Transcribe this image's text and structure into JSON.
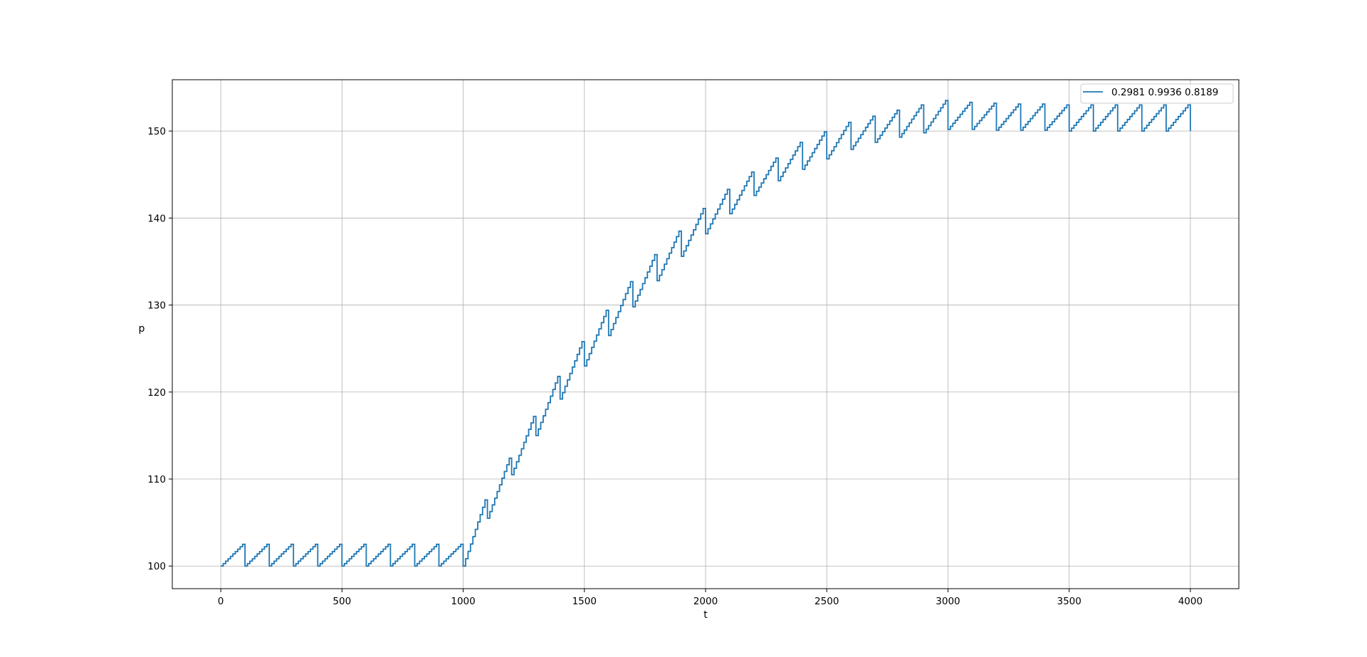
{
  "chart_data": {
    "type": "line",
    "title": "",
    "xlabel": "t",
    "ylabel": "p",
    "xlim": [
      -200,
      4200
    ],
    "ylim": [
      97.4,
      155.9
    ],
    "xticks": [
      0,
      500,
      1000,
      1500,
      2000,
      2500,
      3000,
      3500,
      4000
    ],
    "yticks": [
      100,
      110,
      120,
      130,
      140,
      150
    ],
    "grid": true,
    "legend_position": "top-right",
    "colors": {
      "series": "#1f77b4",
      "grid": "#b0b0b0",
      "axes": "#000000"
    },
    "series": [
      {
        "name": "0.2981  0.9936  0.8189",
        "color": "#1f77b4",
        "shape": "stepped-sawtooth",
        "cycle_length": 100,
        "x_range": [
          0,
          4000
        ],
        "baseline": [
          [
            0,
            100
          ],
          [
            1000,
            100
          ],
          [
            1100,
            105.5
          ],
          [
            1200,
            110.5
          ],
          [
            1300,
            115.0
          ],
          [
            1400,
            119.2
          ],
          [
            1500,
            123.0
          ],
          [
            1600,
            126.5
          ],
          [
            1700,
            129.8
          ],
          [
            1800,
            132.8
          ],
          [
            1900,
            135.6
          ],
          [
            2000,
            138.2
          ],
          [
            2100,
            140.5
          ],
          [
            2200,
            142.6
          ],
          [
            2300,
            144.3
          ],
          [
            2400,
            145.6
          ],
          [
            2500,
            146.8
          ],
          [
            2600,
            147.9
          ],
          [
            2700,
            148.7
          ],
          [
            2800,
            149.3
          ],
          [
            2900,
            149.8
          ],
          [
            3000,
            150.2
          ],
          [
            3100,
            150.2
          ],
          [
            3200,
            150.1
          ],
          [
            3300,
            150.1
          ],
          [
            3400,
            150.1
          ],
          [
            3500,
            150.0
          ],
          [
            3600,
            150.0
          ],
          [
            3700,
            150.0
          ],
          [
            3800,
            150.0
          ],
          [
            3900,
            150.0
          ],
          [
            4000,
            150.0
          ]
        ],
        "peak": [
          [
            100,
            102.5
          ],
          [
            200,
            102.5
          ],
          [
            300,
            102.5
          ],
          [
            400,
            102.5
          ],
          [
            500,
            102.5
          ],
          [
            600,
            102.5
          ],
          [
            700,
            102.5
          ],
          [
            800,
            102.5
          ],
          [
            900,
            102.5
          ],
          [
            1000,
            102.5
          ],
          [
            1100,
            107.6
          ],
          [
            1200,
            112.4
          ],
          [
            1300,
            117.2
          ],
          [
            1400,
            121.8
          ],
          [
            1500,
            125.8
          ],
          [
            1600,
            129.4
          ],
          [
            1700,
            132.7
          ],
          [
            1800,
            135.8
          ],
          [
            1900,
            138.5
          ],
          [
            2000,
            141.1
          ],
          [
            2100,
            143.3
          ],
          [
            2200,
            145.3
          ],
          [
            2300,
            146.9
          ],
          [
            2400,
            148.7
          ],
          [
            2500,
            149.9
          ],
          [
            2600,
            151.0
          ],
          [
            2700,
            151.7
          ],
          [
            2800,
            152.4
          ],
          [
            2900,
            153.0
          ],
          [
            3000,
            153.5
          ],
          [
            3100,
            153.3
          ],
          [
            3200,
            153.2
          ],
          [
            3300,
            153.1
          ],
          [
            3400,
            153.1
          ],
          [
            3500,
            153.0
          ],
          [
            3600,
            153.0
          ],
          [
            3700,
            153.0
          ],
          [
            3800,
            153.0
          ],
          [
            3900,
            153.0
          ],
          [
            4000,
            153.0
          ]
        ],
        "end_value": 150.0
      }
    ]
  }
}
